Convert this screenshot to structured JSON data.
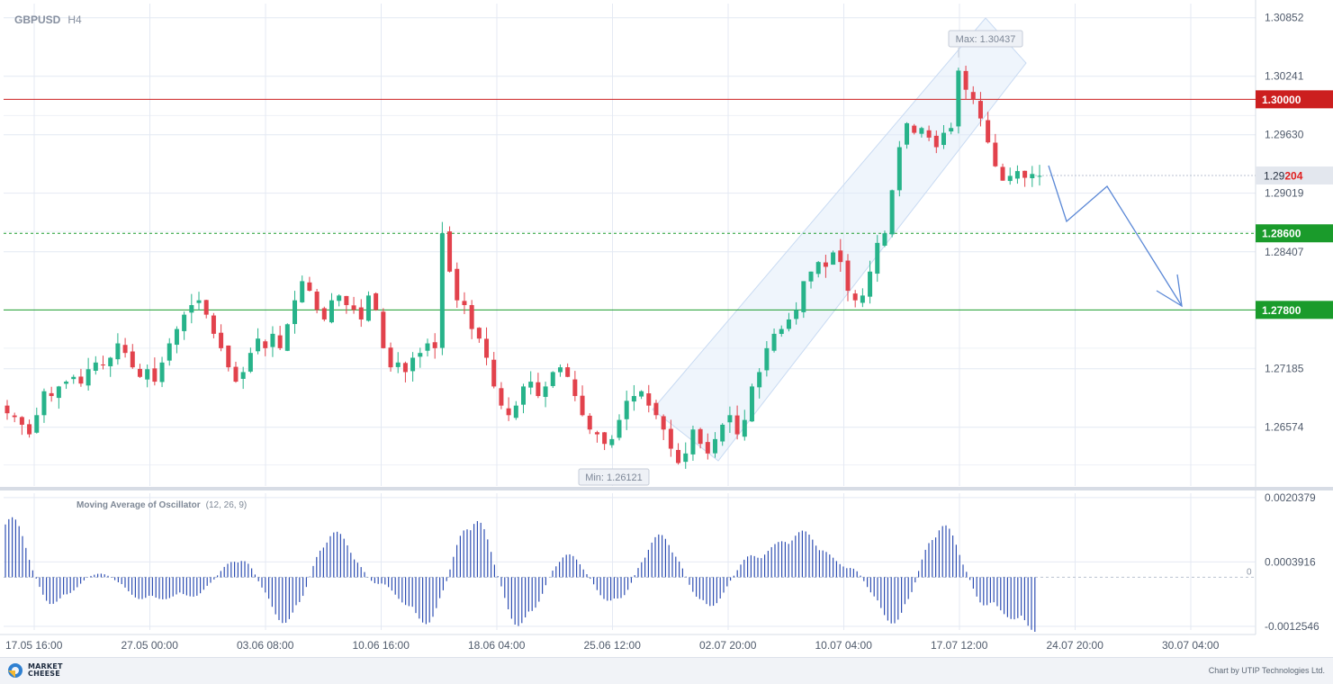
{
  "header": {
    "symbol": "GBPUSD",
    "timeframe": "H4"
  },
  "chart_data": {
    "type": "candlestick",
    "price_axis": {
      "ticks": [
        "1.30852",
        "1.30241",
        "1.29630",
        "1.29019",
        "1.28407",
        "1.27185",
        "1.26574"
      ],
      "range": [
        1.2596,
        1.31
      ]
    },
    "levels": [
      {
        "price": 1.3,
        "label": "1.30000",
        "color": "#cc1f1f",
        "style": "solid"
      },
      {
        "price": 1.286,
        "label": "1.28600",
        "color": "#1a9b2b",
        "style": "dashed"
      },
      {
        "price": 1.278,
        "label": "1.27800",
        "color": "#1a9b2b",
        "style": "solid"
      }
    ],
    "current_price": {
      "label_main": "1.29",
      "label_highlight": "204",
      "price": 1.29204
    },
    "max_label": "Max: 1.30437",
    "min_label": "Min: 1.26121",
    "time_axis": [
      "17.05 16:00",
      "27.05 00:00",
      "03.06 08:00",
      "10.06 16:00",
      "18.06 04:00",
      "25.06 12:00",
      "02.07 20:00",
      "10.07 04:00",
      "17.07 12:00",
      "24.07 20:00",
      "30.07 04:00"
    ],
    "close_path": [
      1.2672,
      1.2668,
      1.266,
      1.265,
      1.267,
      1.2695,
      1.269,
      1.27,
      1.2705,
      1.271,
      1.2703,
      1.2718,
      1.2725,
      1.2722,
      1.273,
      1.2745,
      1.2735,
      1.272,
      1.271,
      1.2718,
      1.2705,
      1.2725,
      1.2745,
      1.276,
      1.2775,
      1.2785,
      1.279,
      1.2775,
      1.2755,
      1.274,
      1.272,
      1.2705,
      1.2715,
      1.2735,
      1.275,
      1.274,
      1.2755,
      1.274,
      1.2765,
      1.279,
      1.281,
      1.28,
      1.278,
      1.277,
      1.279,
      1.2795,
      1.2785,
      1.278,
      1.277,
      1.2795,
      1.278,
      1.274,
      1.272,
      1.2725,
      1.2715,
      1.273,
      1.2735,
      1.2745,
      1.274,
      1.286,
      1.282,
      1.279,
      1.2785,
      1.276,
      1.275,
      1.273,
      1.27,
      1.268,
      1.267,
      1.268,
      1.27,
      1.2705,
      1.269,
      1.27,
      1.2715,
      1.272,
      1.271,
      1.269,
      1.267,
      1.2655,
      1.265,
      1.264,
      1.2645,
      1.2665,
      1.2685,
      1.269,
      1.2695,
      1.268,
      1.267,
      1.2655,
      1.2635,
      1.262,
      1.263,
      1.2655,
      1.264,
      1.263,
      1.2645,
      1.266,
      1.267,
      1.265,
      1.2665,
      1.27,
      1.2715,
      1.274,
      1.2755,
      1.276,
      1.277,
      1.278,
      1.281,
      1.282,
      1.283,
      1.2825,
      1.284,
      1.283,
      1.28,
      1.279,
      1.2795,
      1.282,
      1.285,
      1.286,
      1.2905,
      1.295,
      1.2975,
      1.2965,
      1.297,
      1.296,
      1.295,
      1.2965,
      1.297,
      1.303,
      1.301,
      1.3,
      1.298,
      1.2955,
      1.293,
      1.2915,
      1.292,
      1.2925,
      1.2918,
      1.2922,
      1.292
    ],
    "oscillator": {
      "title": "Moving Average of Oscillator",
      "params": "(12, 26, 9)",
      "ticks": [
        "0.0020379",
        "0.0003916",
        "0",
        "-0.0012546"
      ],
      "range": [
        -0.00135,
        0.00215
      ]
    }
  },
  "footer": {
    "brand_line1": "MARKET",
    "brand_line2": "CHEESE",
    "credit": "Chart by UTIP Technologies Ltd."
  }
}
